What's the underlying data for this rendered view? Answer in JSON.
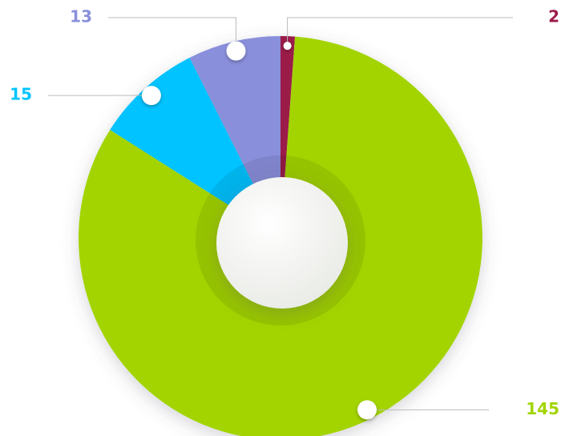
{
  "chart_data": {
    "type": "pie",
    "values": [
      2,
      145,
      15,
      13
    ],
    "colors": [
      "#9b1b4a",
      "#a3d400",
      "#00c3ff",
      "#8a8fdb"
    ]
  }
}
